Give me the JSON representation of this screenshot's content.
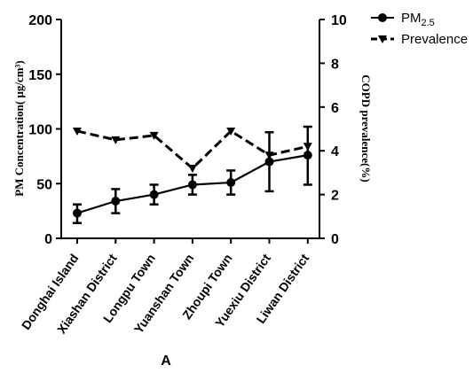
{
  "chart_data": {
    "type": "line",
    "categories": [
      "Donghai Island",
      "Xiashan District",
      "Longpu Town",
      "Yuanshan Town",
      "Zhoupi Town",
      "Yuexiu District",
      "Liwan District"
    ],
    "series": [
      {
        "name": "PM2.5",
        "legend_base": "PM",
        "legend_sub": "2.5",
        "axis": "left",
        "values": [
          23,
          34,
          40,
          49,
          51,
          70,
          76
        ],
        "error_low": [
          14,
          23,
          31,
          40,
          40,
          43,
          49
        ],
        "error_high": [
          31,
          45,
          49,
          58,
          62,
          97,
          102
        ],
        "color": "#000000",
        "style": "solid",
        "marker": "circle"
      },
      {
        "name": "Prevalence",
        "axis": "right",
        "values": [
          4.9,
          4.5,
          4.7,
          3.2,
          4.9,
          3.8,
          4.2
        ],
        "color": "#000000",
        "style": "dashed",
        "marker": "triangle-down"
      }
    ],
    "ylabel_left": "PM Concentration( μg/cm³)",
    "ylabel_right": "COPD prevalence(%)",
    "ylim_left": [
      0,
      200
    ],
    "yticks_left": [
      0,
      50,
      100,
      150,
      200
    ],
    "ylim_right": [
      0,
      10
    ],
    "yticks_right": [
      0,
      2,
      4,
      6,
      8,
      10
    ],
    "grid": false,
    "legend_position": "top-right"
  },
  "caption": "A"
}
